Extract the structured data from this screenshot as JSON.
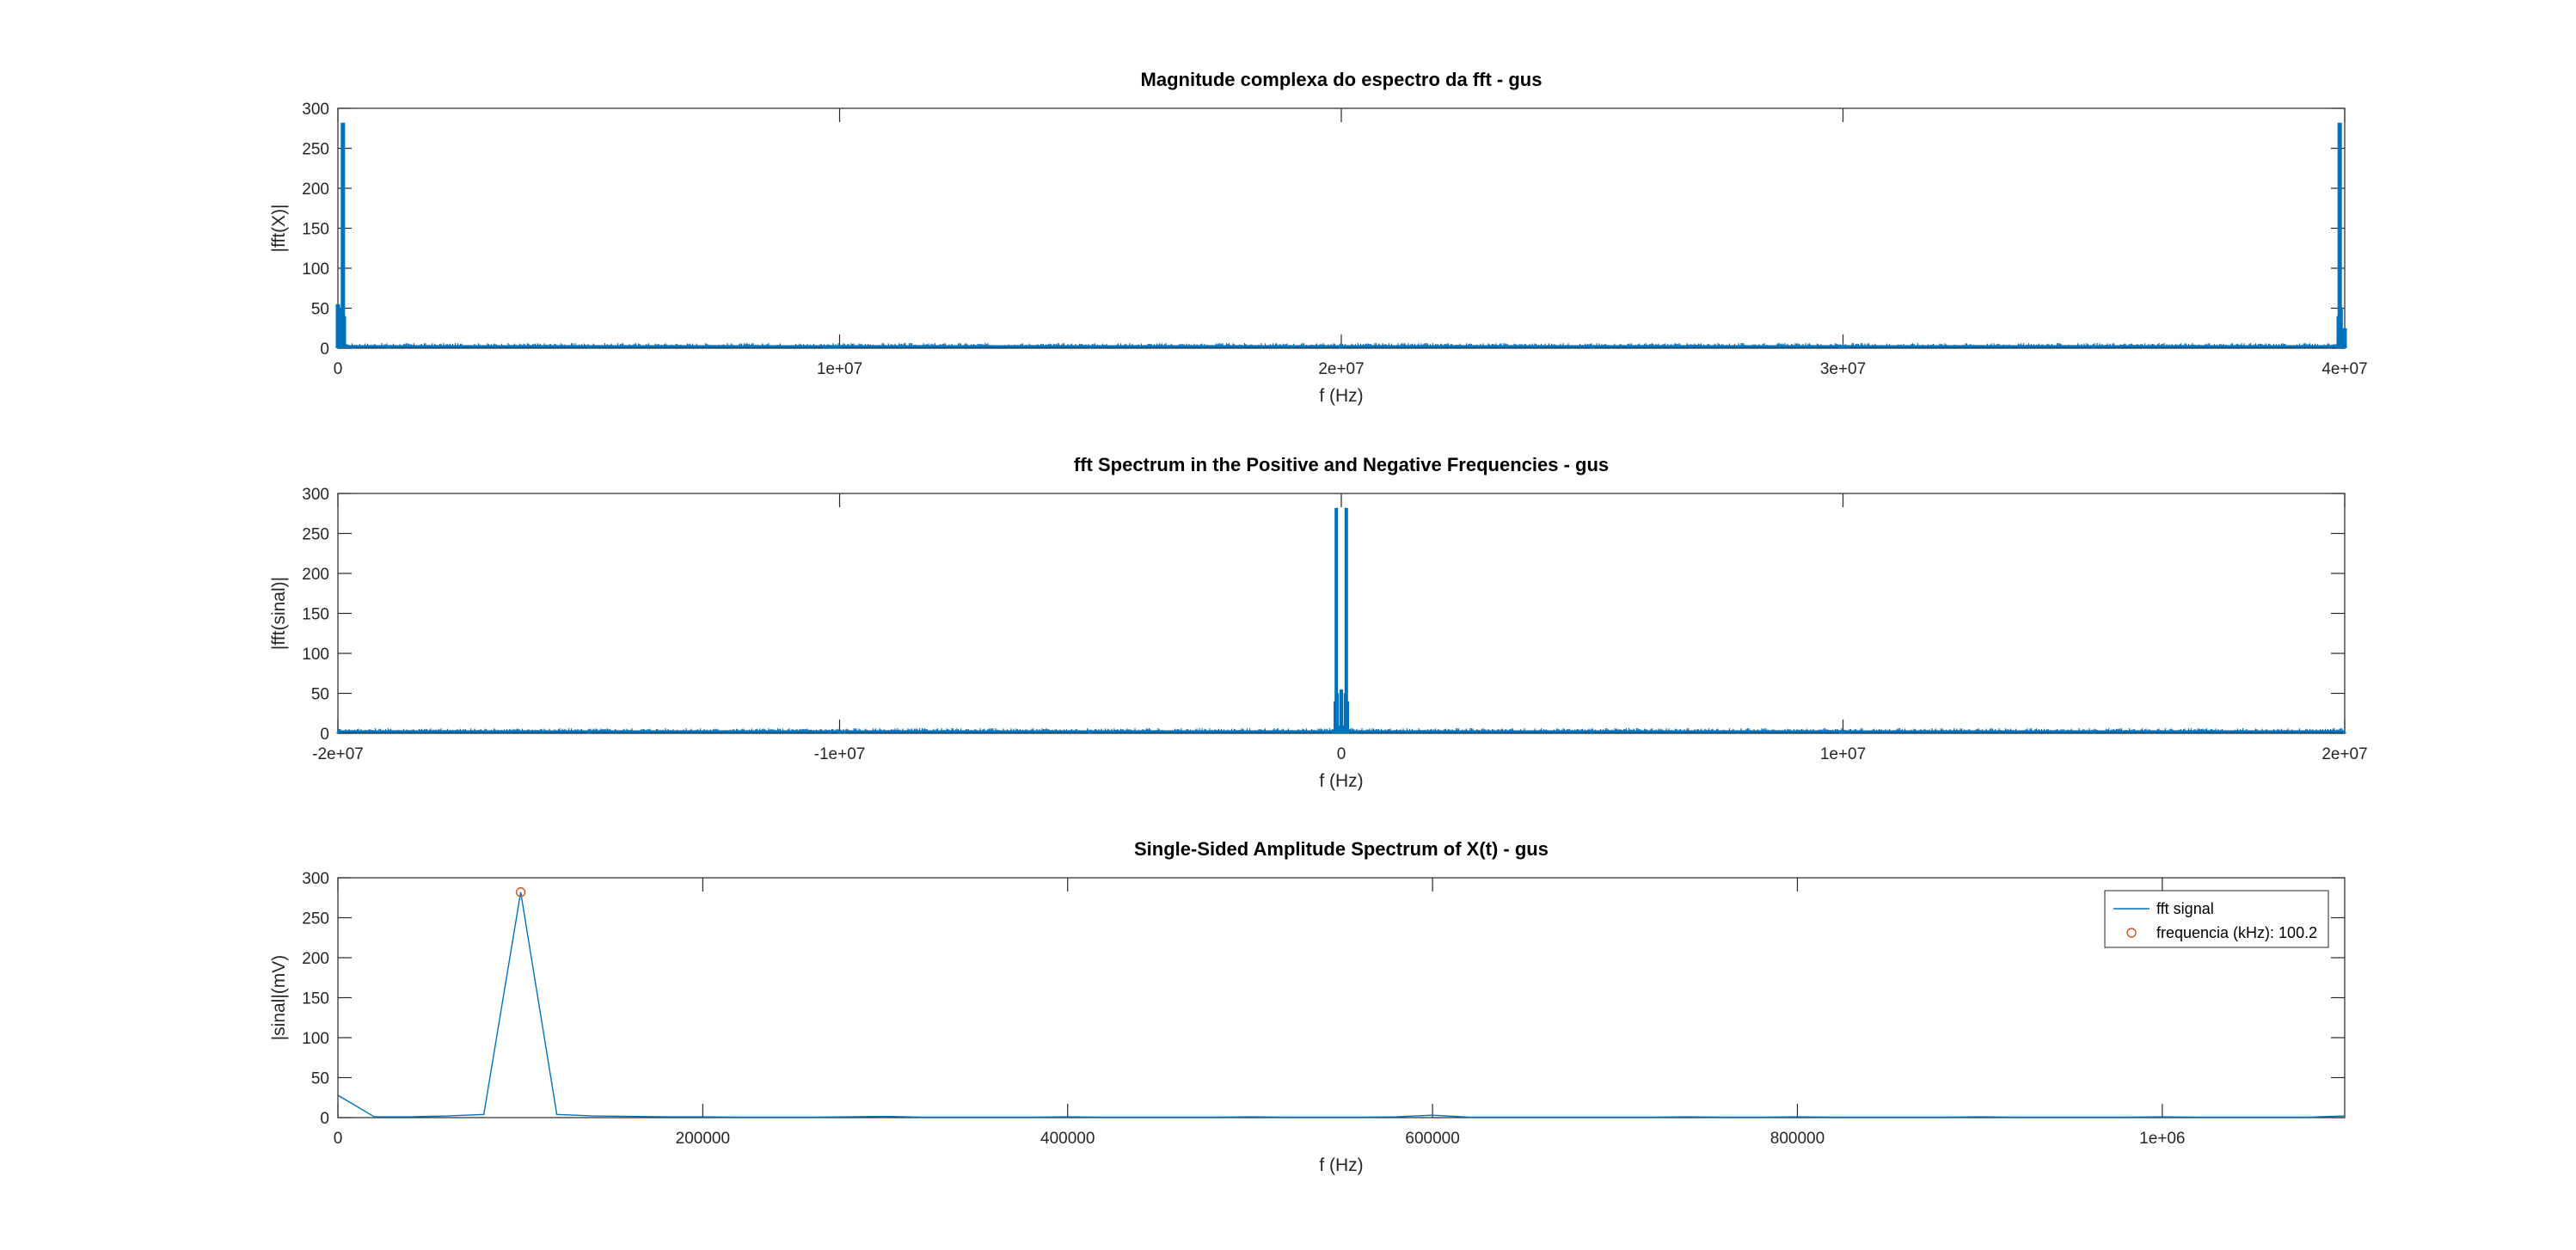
{
  "chart_data": [
    {
      "type": "line",
      "title": "Magnitude complexa do espectro da fft - gus",
      "xlabel": "f (Hz)",
      "ylabel": "|fft(X)|",
      "xlim": [
        0,
        40000000
      ],
      "ylim": [
        0,
        300
      ],
      "xticks": [
        0,
        10000000,
        20000000,
        30000000,
        40000000
      ],
      "xtick_labels": [
        "0",
        "1e+07",
        "2e+07",
        "3e+07",
        "4e+07"
      ],
      "yticks": [
        0,
        50,
        100,
        150,
        200,
        250,
        300
      ],
      "ytick_labels": [
        "0",
        "50",
        "100",
        "150",
        "200",
        "250",
        "300"
      ],
      "grid": false,
      "line_color": "#0072bd",
      "series": [
        {
          "x": [
            0,
            40000,
            60000,
            80000,
            100000,
            100200,
            120000,
            140000,
            200000,
            300000,
            1000000,
            5000000,
            9700000,
            9800000,
            9900000,
            10000000,
            15000000,
            20000000,
            25000000,
            29950000,
            30000000,
            30100000,
            35000000,
            39700000,
            39860000,
            39880000,
            39899800,
            39900000,
            39920000,
            39940000,
            39960000,
            40000000
          ],
          "y": [
            55,
            3,
            10,
            50,
            282,
            282,
            40,
            5,
            2,
            2,
            1,
            1,
            1,
            4,
            3,
            1,
            1,
            1,
            1,
            3,
            4,
            1,
            1,
            1,
            5,
            40,
            282,
            282,
            50,
            10,
            3,
            25
          ]
        }
      ]
    },
    {
      "type": "line",
      "title": "fft Spectrum in the Positive and Negative Frequencies - gus",
      "xlabel": "f (Hz)",
      "ylabel": "|fft(sinal)|",
      "xlim": [
        -20000000,
        20000000
      ],
      "ylim": [
        0,
        300
      ],
      "xticks": [
        -20000000,
        -10000000,
        0,
        10000000,
        20000000
      ],
      "xtick_labels": [
        "-2e+07",
        "-1e+07",
        "0",
        "1e+07",
        "2e+07"
      ],
      "yticks": [
        0,
        50,
        100,
        150,
        200,
        250,
        300
      ],
      "ytick_labels": [
        "0",
        "50",
        "100",
        "150",
        "200",
        "250",
        "300"
      ],
      "grid": false,
      "line_color": "#0072bd",
      "series": [
        {
          "x": [
            -20000000,
            -15000000,
            -10200000,
            -10000000,
            -9900000,
            -5000000,
            -300000,
            -140000,
            -120000,
            -100200,
            -100000,
            -80000,
            -40000,
            0,
            40000,
            80000,
            100000,
            100200,
            120000,
            140000,
            300000,
            5000000,
            9950000,
            10000000,
            10100000,
            15000000,
            20000000
          ],
          "y": [
            1,
            1,
            1,
            4,
            1,
            1,
            2,
            5,
            40,
            282,
            282,
            50,
            10,
            55,
            10,
            50,
            282,
            282,
            40,
            5,
            2,
            1,
            4,
            3,
            1,
            1,
            1
          ]
        }
      ]
    },
    {
      "type": "line",
      "title": "Single-Sided Amplitude Spectrum of X(t) - gus",
      "xlabel": "f (Hz)",
      "ylabel": "|sinal|(mV)",
      "xlim": [
        0,
        1100000
      ],
      "ylim": [
        0,
        300
      ],
      "xticks": [
        0,
        200000,
        400000,
        600000,
        800000,
        1000000
      ],
      "xtick_labels": [
        "0",
        "200000",
        "400000",
        "600000",
        "800000",
        "1e+06"
      ],
      "yticks": [
        0,
        50,
        100,
        150,
        200,
        250,
        300
      ],
      "ytick_labels": [
        "0",
        "50",
        "100",
        "150",
        "200",
        "250",
        "300"
      ],
      "grid": false,
      "legend_position": "top-right",
      "legend": [
        "fft signal",
        "frequencia (kHz): 100.2"
      ],
      "series": [
        {
          "name": "fft signal",
          "color": "#0072bd",
          "x": [
            0,
            20000,
            40000,
            60000,
            80000,
            100200,
            120000,
            140000,
            160000,
            180000,
            200000,
            220000,
            240000,
            260000,
            280000,
            300000,
            320000,
            340000,
            360000,
            380000,
            400000,
            420000,
            440000,
            460000,
            480000,
            500000,
            520000,
            540000,
            560000,
            580000,
            600000,
            620000,
            640000,
            660000,
            680000,
            700000,
            720000,
            740000,
            760000,
            780000,
            800000,
            820000,
            840000,
            860000,
            880000,
            900000,
            920000,
            940000,
            960000,
            980000,
            1000000,
            1020000,
            1040000,
            1060000,
            1080000,
            1100000
          ],
          "y": [
            28,
            1,
            1,
            2,
            4,
            282,
            4,
            2,
            1.5,
            1,
            1,
            0.5,
            0.5,
            0.5,
            1,
            1.5,
            0.5,
            0.5,
            0.5,
            0.5,
            1,
            0.5,
            0.5,
            0.5,
            0.5,
            1,
            0.5,
            0.5,
            0.5,
            1,
            3,
            0.5,
            0.5,
            0.5,
            0.5,
            0.5,
            0.5,
            1,
            0.5,
            0.5,
            1,
            0.5,
            0.5,
            0.5,
            0.5,
            1,
            0.5,
            0.5,
            0.5,
            0.5,
            1,
            0.5,
            0.5,
            0.5,
            0.5,
            2
          ]
        },
        {
          "name": "frequencia (kHz): 100.2",
          "color": "#d95319",
          "marker": "circle",
          "x": [
            100200
          ],
          "y": [
            282
          ]
        }
      ]
    }
  ]
}
